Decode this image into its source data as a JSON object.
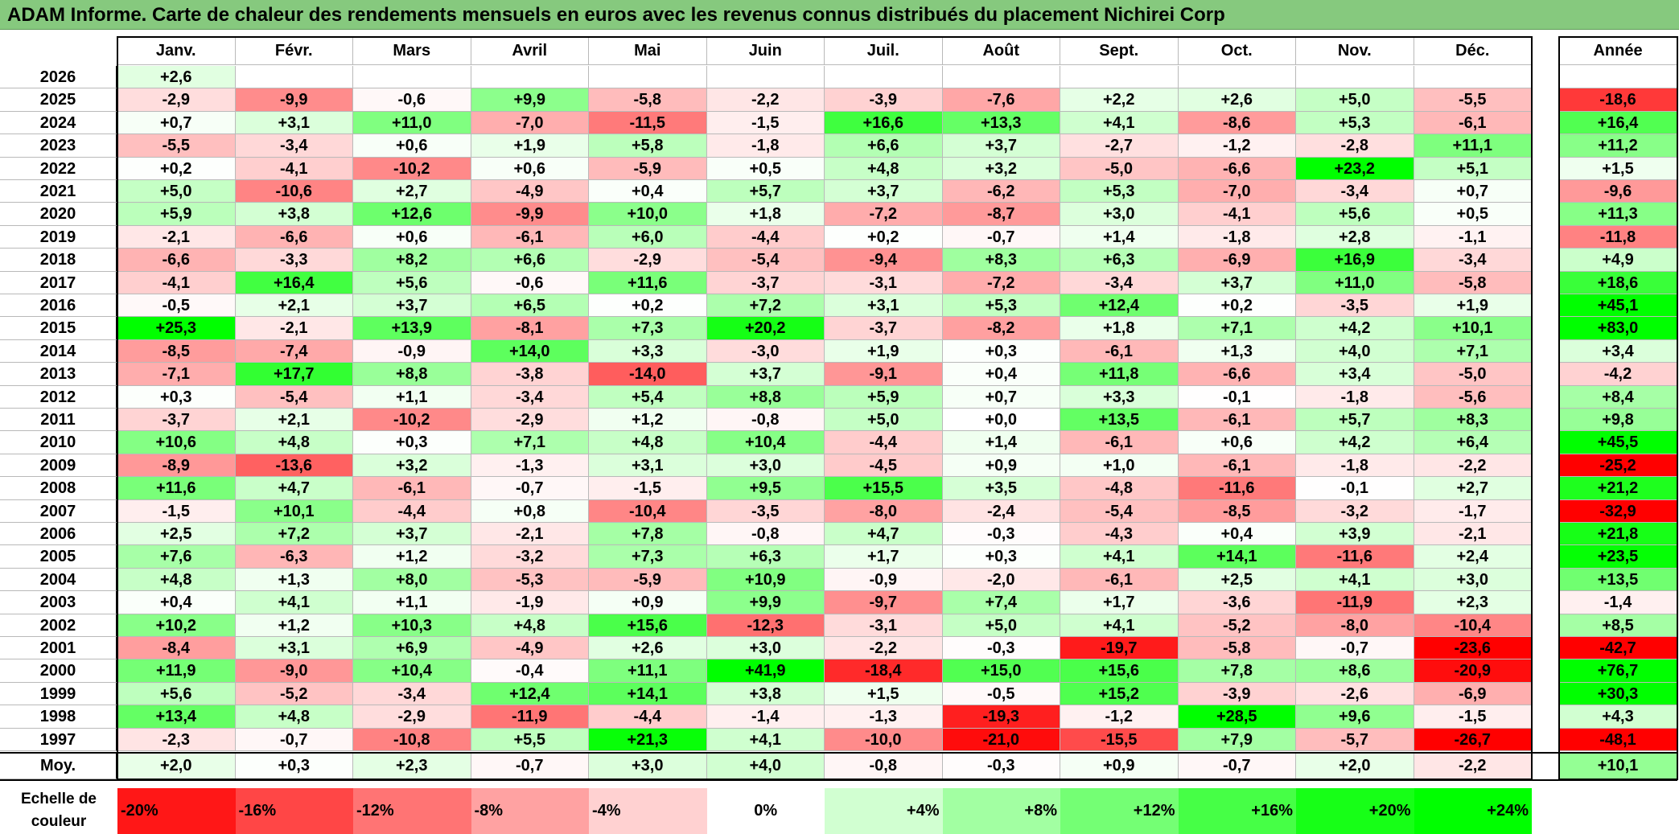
{
  "title": "ADAM Informe. Carte de chaleur des rendements mensuels en euros avec les revenus connus distribués du placement Nichirei Corp",
  "chart_data": {
    "type": "heatmap",
    "title": "ADAM Informe. Carte de chaleur des rendements mensuels en euros avec les revenus connus distribués du placement Nichirei Corp",
    "columns": [
      "Janv.",
      "Févr.",
      "Mars",
      "Avril",
      "Mai",
      "Juin",
      "Juil.",
      "Août",
      "Sept.",
      "Oct.",
      "Nov.",
      "Déc."
    ],
    "annual_header": "Année",
    "rows": [
      {
        "year": "2026",
        "values": [
          "+2,6",
          "",
          "",
          "",
          "",
          "",
          "",
          "",
          "",
          "",
          "",
          ""
        ],
        "annual": ""
      },
      {
        "year": "2025",
        "values": [
          "-2,9",
          "-9,9",
          "-0,6",
          "+9,9",
          "-5,8",
          "-2,2",
          "-3,9",
          "-7,6",
          "+2,2",
          "+2,6",
          "+5,0",
          "-5,5"
        ],
        "annual": "-18,6"
      },
      {
        "year": "2024",
        "values": [
          "+0,7",
          "+3,1",
          "+11,0",
          "-7,0",
          "-11,5",
          "-1,5",
          "+16,6",
          "+13,3",
          "+4,1",
          "-8,6",
          "+5,3",
          "-6,1"
        ],
        "annual": "+16,4"
      },
      {
        "year": "2023",
        "values": [
          "-5,5",
          "-3,4",
          "+0,6",
          "+1,9",
          "+5,8",
          "-1,8",
          "+6,6",
          "+3,7",
          "-2,7",
          "-1,2",
          "-2,8",
          "+11,1"
        ],
        "annual": "+11,2"
      },
      {
        "year": "2022",
        "values": [
          "+0,2",
          "-4,1",
          "-10,2",
          "+0,6",
          "-5,9",
          "+0,5",
          "+4,8",
          "+3,2",
          "-5,0",
          "-6,6",
          "+23,2",
          "+5,1"
        ],
        "annual": "+1,5"
      },
      {
        "year": "2021",
        "values": [
          "+5,0",
          "-10,6",
          "+2,7",
          "-4,9",
          "+0,4",
          "+5,7",
          "+3,7",
          "-6,2",
          "+5,3",
          "-7,0",
          "-3,4",
          "+0,7"
        ],
        "annual": "-9,6"
      },
      {
        "year": "2020",
        "values": [
          "+5,9",
          "+3,8",
          "+12,6",
          "-9,9",
          "+10,0",
          "+1,8",
          "-7,2",
          "-8,7",
          "+3,0",
          "-4,1",
          "+5,6",
          "+0,5"
        ],
        "annual": "+11,3"
      },
      {
        "year": "2019",
        "values": [
          "-2,1",
          "-6,6",
          "+0,6",
          "-6,1",
          "+6,0",
          "-4,4",
          "+0,2",
          "-0,7",
          "+1,4",
          "-1,8",
          "+2,8",
          "-1,1"
        ],
        "annual": "-11,8"
      },
      {
        "year": "2018",
        "values": [
          "-6,6",
          "-3,3",
          "+8,2",
          "+6,6",
          "-2,9",
          "-5,4",
          "-9,4",
          "+8,3",
          "+6,3",
          "-6,9",
          "+16,9",
          "-3,4"
        ],
        "annual": "+4,9"
      },
      {
        "year": "2017",
        "values": [
          "-4,1",
          "+16,4",
          "+5,6",
          "-0,6",
          "+11,6",
          "-3,7",
          "-3,1",
          "-7,2",
          "-3,4",
          "+3,7",
          "+11,0",
          "-5,8"
        ],
        "annual": "+18,6"
      },
      {
        "year": "2016",
        "values": [
          "-0,5",
          "+2,1",
          "+3,7",
          "+6,5",
          "+0,2",
          "+7,2",
          "+3,1",
          "+5,3",
          "+12,4",
          "+0,2",
          "-3,5",
          "+1,9"
        ],
        "annual": "+45,1"
      },
      {
        "year": "2015",
        "values": [
          "+25,3",
          "-2,1",
          "+13,9",
          "-8,1",
          "+7,3",
          "+20,2",
          "-3,7",
          "-8,2",
          "+1,8",
          "+7,1",
          "+4,2",
          "+10,1"
        ],
        "annual": "+83,0"
      },
      {
        "year": "2014",
        "values": [
          "-8,5",
          "-7,4",
          "-0,9",
          "+14,0",
          "+3,3",
          "-3,0",
          "+1,9",
          "+0,3",
          "-6,1",
          "+1,3",
          "+4,0",
          "+7,1"
        ],
        "annual": "+3,4"
      },
      {
        "year": "2013",
        "values": [
          "-7,1",
          "+17,7",
          "+8,8",
          "-3,8",
          "-14,0",
          "+3,7",
          "-9,1",
          "+0,4",
          "+11,8",
          "-6,6",
          "+3,4",
          "-5,0"
        ],
        "annual": "-4,2"
      },
      {
        "year": "2012",
        "values": [
          "+0,3",
          "-5,4",
          "+1,1",
          "-3,4",
          "+5,4",
          "+8,8",
          "+5,9",
          "+0,7",
          "+3,3",
          "-0,1",
          "-1,8",
          "-5,6"
        ],
        "annual": "+8,4"
      },
      {
        "year": "2011",
        "values": [
          "-3,7",
          "+2,1",
          "-10,2",
          "-2,9",
          "+1,2",
          "-0,8",
          "+5,0",
          "+0,0",
          "+13,5",
          "-6,1",
          "+5,7",
          "+8,3"
        ],
        "annual": "+9,8"
      },
      {
        "year": "2010",
        "values": [
          "+10,6",
          "+4,8",
          "+0,3",
          "+7,1",
          "+4,8",
          "+10,4",
          "-4,4",
          "+1,4",
          "-6,1",
          "+0,6",
          "+4,2",
          "+6,4"
        ],
        "annual": "+45,5"
      },
      {
        "year": "2009",
        "values": [
          "-8,9",
          "-13,6",
          "+3,2",
          "-1,3",
          "+3,1",
          "+3,0",
          "-4,5",
          "+0,9",
          "+1,0",
          "-6,1",
          "-1,8",
          "-2,2"
        ],
        "annual": "-25,2"
      },
      {
        "year": "2008",
        "values": [
          "+11,6",
          "+4,7",
          "-6,1",
          "-0,7",
          "-1,5",
          "+9,5",
          "+15,5",
          "+3,5",
          "-4,8",
          "-11,6",
          "-0,1",
          "+2,7"
        ],
        "annual": "+21,2"
      },
      {
        "year": "2007",
        "values": [
          "-1,5",
          "+10,1",
          "-4,4",
          "+0,8",
          "-10,4",
          "-3,5",
          "-8,0",
          "-2,4",
          "-5,4",
          "-8,5",
          "-3,2",
          "-1,7"
        ],
        "annual": "-32,9"
      },
      {
        "year": "2006",
        "values": [
          "+2,5",
          "+7,2",
          "+3,7",
          "-2,1",
          "+7,8",
          "-0,8",
          "+4,7",
          "-0,3",
          "-4,3",
          "+0,4",
          "+3,9",
          "-2,1"
        ],
        "annual": "+21,8"
      },
      {
        "year": "2005",
        "values": [
          "+7,6",
          "-6,3",
          "+1,2",
          "-3,2",
          "+7,3",
          "+6,3",
          "+1,7",
          "+0,3",
          "+4,1",
          "+14,1",
          "-11,6",
          "+2,4"
        ],
        "annual": "+23,5"
      },
      {
        "year": "2004",
        "values": [
          "+4,8",
          "+1,3",
          "+8,0",
          "-5,3",
          "-5,9",
          "+10,9",
          "-0,9",
          "-2,0",
          "-6,1",
          "+2,5",
          "+4,1",
          "+3,0"
        ],
        "annual": "+13,5"
      },
      {
        "year": "2003",
        "values": [
          "+0,4",
          "+4,1",
          "+1,1",
          "-1,9",
          "+0,9",
          "+9,9",
          "-9,7",
          "+7,4",
          "+1,7",
          "-3,6",
          "-11,9",
          "+2,3"
        ],
        "annual": "-1,4"
      },
      {
        "year": "2002",
        "values": [
          "+10,2",
          "+1,2",
          "+10,3",
          "+4,8",
          "+15,6",
          "-12,3",
          "-3,1",
          "+5,0",
          "+4,1",
          "-5,2",
          "-8,0",
          "-10,4"
        ],
        "annual": "+8,5"
      },
      {
        "year": "2001",
        "values": [
          "-8,4",
          "+3,1",
          "+6,9",
          "-4,9",
          "+2,6",
          "+3,0",
          "-2,2",
          "-0,3",
          "-19,7",
          "-5,8",
          "-0,7",
          "-23,6"
        ],
        "annual": "-42,7"
      },
      {
        "year": "2000",
        "values": [
          "+11,9",
          "-9,0",
          "+10,4",
          "-0,4",
          "+11,1",
          "+41,9",
          "-18,4",
          "+15,0",
          "+15,6",
          "+7,8",
          "+8,6",
          "-20,9"
        ],
        "annual": "+76,7"
      },
      {
        "year": "1999",
        "values": [
          "+5,6",
          "-5,2",
          "-3,4",
          "+12,4",
          "+14,1",
          "+3,8",
          "+1,5",
          "-0,5",
          "+15,2",
          "-3,9",
          "-2,6",
          "-6,9"
        ],
        "annual": "+30,3"
      },
      {
        "year": "1998",
        "values": [
          "+13,4",
          "+4,8",
          "-2,9",
          "-11,9",
          "-4,4",
          "-1,4",
          "-1,3",
          "-19,3",
          "-1,2",
          "+28,5",
          "+9,6",
          "-1,5"
        ],
        "annual": "+4,3"
      },
      {
        "year": "1997",
        "values": [
          "-2,3",
          "-0,7",
          "-10,8",
          "+5,5",
          "+21,3",
          "+4,1",
          "-10,0",
          "-21,0",
          "-15,5",
          "+7,9",
          "-5,7",
          "-26,7"
        ],
        "annual": "-48,1"
      }
    ],
    "average": {
      "label": "Moy.",
      "values": [
        "+2,0",
        "+0,3",
        "+2,3",
        "-0,7",
        "+3,0",
        "+4,0",
        "-0,8",
        "-0,3",
        "+0,9",
        "-0,7",
        "+2,0",
        "-2,2"
      ],
      "annual": "+10,1"
    },
    "legend": {
      "label": "Echelle de couleur",
      "items": [
        "-20%",
        "-16%",
        "-12%",
        "-8%",
        "-4%",
        "0%",
        "+4%",
        "+8%",
        "+12%",
        "+16%",
        "+20%",
        "+24%"
      ],
      "values": [
        -20,
        -16,
        -12,
        -8,
        -4,
        0,
        4,
        8,
        12,
        16,
        20,
        24
      ]
    },
    "colors": {
      "negative": "#ff0000",
      "neutral": "#ffffff",
      "positive": "#00ff00"
    }
  }
}
